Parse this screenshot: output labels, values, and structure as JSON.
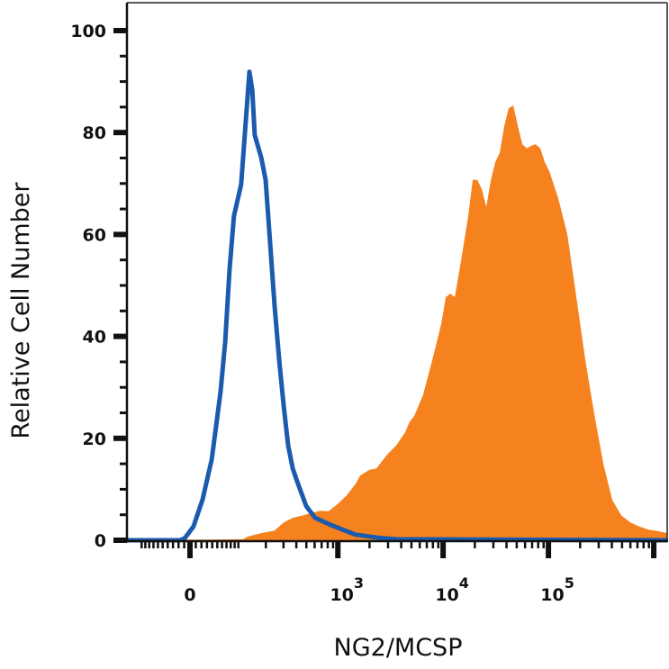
{
  "chart_data": {
    "type": "area",
    "title": "",
    "xlabel": "NG2/MCSP",
    "ylabel": "Relative Cell Number",
    "x_scale": "logicle",
    "xlim": [
      -147,
      1340000
    ],
    "ylim": [
      0,
      100
    ],
    "grid": false,
    "legend": "none",
    "y_ticks": [
      {
        "value": 0,
        "label": "0"
      },
      {
        "value": 20,
        "label": "20"
      },
      {
        "value": 40,
        "label": "40"
      },
      {
        "value": 60,
        "label": "60"
      },
      {
        "value": 80,
        "label": "80"
      },
      {
        "value": 100,
        "label": "100"
      }
    ],
    "x_ticks": [
      {
        "value": 0,
        "base": "0",
        "exp": ""
      },
      {
        "value": 1000,
        "base": "10",
        "exp": "3"
      },
      {
        "value": 10000,
        "base": "10",
        "exp": "4"
      },
      {
        "value": 100000,
        "base": "10",
        "exp": "5"
      }
    ],
    "series": [
      {
        "style": "filled",
        "color": "#f5821f",
        "points": [
          [
            -147,
            0
          ],
          [
            114,
            0.2
          ],
          [
            128,
            0.7
          ],
          [
            179,
            1.4
          ],
          [
            245,
            1.9
          ],
          [
            301,
            3.5
          ],
          [
            369,
            4.4
          ],
          [
            450,
            4.8
          ],
          [
            550,
            5.3
          ],
          [
            671,
            5.8
          ],
          [
            816,
            5.7
          ],
          [
            996,
            7.1
          ],
          [
            1213,
            8.8
          ],
          [
            1477,
            11.1
          ],
          [
            1630,
            12.7
          ],
          [
            1984,
            13.8
          ],
          [
            2323,
            14.1
          ],
          [
            2941,
            16.8
          ],
          [
            3587,
            18.6
          ],
          [
            4363,
            21.2
          ],
          [
            4820,
            23.3
          ],
          [
            5320,
            24.4
          ],
          [
            6470,
            28.6
          ],
          [
            7877,
            35.3
          ],
          [
            9590,
            42.4
          ],
          [
            10600,
            47.7
          ],
          [
            11700,
            48.4
          ],
          [
            12900,
            47.7
          ],
          [
            14800,
            54.8
          ],
          [
            17300,
            63.6
          ],
          [
            19100,
            70.7
          ],
          [
            21100,
            70.7
          ],
          [
            23300,
            68.9
          ],
          [
            25700,
            65.4
          ],
          [
            28400,
            70.7
          ],
          [
            31300,
            74.2
          ],
          [
            34500,
            76
          ],
          [
            38100,
            81.3
          ],
          [
            42000,
            84.8
          ],
          [
            46400,
            85.3
          ],
          [
            51200,
            81.3
          ],
          [
            56500,
            77.7
          ],
          [
            62300,
            76.9
          ],
          [
            68700,
            77.4
          ],
          [
            75800,
            77.7
          ],
          [
            83700,
            76.9
          ],
          [
            92300,
            74.2
          ],
          [
            101900,
            72.4
          ],
          [
            124000,
            67.1
          ],
          [
            151000,
            60.1
          ],
          [
            184000,
            47.7
          ],
          [
            224000,
            35.3
          ],
          [
            273000,
            24.7
          ],
          [
            332000,
            15
          ],
          [
            404000,
            7.9
          ],
          [
            491000,
            4.9
          ],
          [
            599000,
            3.5
          ],
          [
            728000,
            2.7
          ],
          [
            887000,
            2.1
          ],
          [
            1080000,
            1.8
          ],
          [
            1340000,
            1.4
          ]
        ]
      },
      {
        "style": "line",
        "color": "#1c5aad",
        "points": [
          [
            -147,
            0
          ],
          [
            -17,
            0
          ],
          [
            -9,
            0.4
          ],
          [
            6,
            2.7
          ],
          [
            22,
            8
          ],
          [
            39,
            15.9
          ],
          [
            57,
            29.2
          ],
          [
            67,
            38.9
          ],
          [
            77,
            53
          ],
          [
            88,
            63.6
          ],
          [
            108,
            69.8
          ],
          [
            123,
            83
          ],
          [
            134,
            91.9
          ],
          [
            144,
            88.3
          ],
          [
            153,
            79.5
          ],
          [
            179,
            75.1
          ],
          [
            199,
            70.7
          ],
          [
            221,
            58.3
          ],
          [
            245,
            45.9
          ],
          [
            272,
            35.3
          ],
          [
            301,
            26.5
          ],
          [
            333,
            18.6
          ],
          [
            369,
            14.1
          ],
          [
            408,
            11.5
          ],
          [
            498,
            6.7
          ],
          [
            607,
            4.4
          ],
          [
            816,
            3.2
          ],
          [
            1098,
            2.1
          ],
          [
            1477,
            1.1
          ],
          [
            2418,
            0.5
          ],
          [
            3587,
            0.2
          ],
          [
            1340000,
            0
          ]
        ]
      }
    ]
  }
}
